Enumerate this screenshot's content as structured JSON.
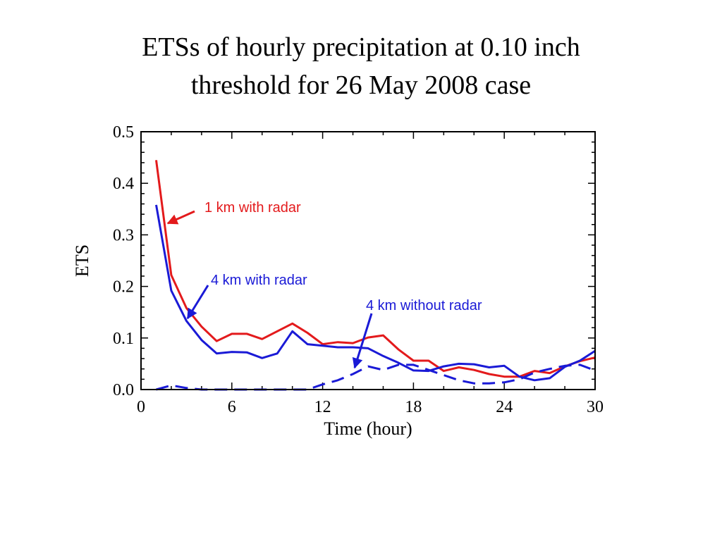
{
  "title_line1": "ETSs of hourly precipitation at 0.10 inch",
  "title_line2": "threshold for 26 May 2008 case",
  "chart_data": {
    "type": "line",
    "xlabel": "Time (hour)",
    "ylabel": "ETS",
    "xlim": [
      0,
      30
    ],
    "ylim": [
      0.0,
      0.5
    ],
    "xticks": [
      0,
      6,
      12,
      18,
      24,
      30
    ],
    "yticks": [
      "0.0",
      "0.1",
      "0.2",
      "0.3",
      "0.4",
      "0.5"
    ],
    "grid": false,
    "series": [
      {
        "name": "1 km with radar",
        "color": "#e31a1c",
        "style": "solid",
        "x": [
          1,
          2,
          3,
          4,
          5,
          6,
          7,
          8,
          9,
          10,
          11,
          12,
          13,
          14,
          15,
          16,
          17,
          18,
          19,
          20,
          21,
          22,
          23,
          24,
          25,
          26,
          27,
          28,
          29,
          30
        ],
        "values": [
          0.445,
          0.222,
          0.158,
          0.122,
          0.094,
          0.108,
          0.108,
          0.098,
          0.113,
          0.128,
          0.11,
          0.088,
          0.092,
          0.09,
          0.101,
          0.105,
          0.078,
          0.056,
          0.056,
          0.036,
          0.043,
          0.038,
          0.03,
          0.025,
          0.025,
          0.036,
          0.032,
          0.045,
          0.055,
          0.062
        ]
      },
      {
        "name": "4 km with radar",
        "color": "#1a1ad6",
        "style": "solid",
        "x": [
          1,
          2,
          3,
          4,
          5,
          6,
          7,
          8,
          9,
          10,
          11,
          12,
          13,
          14,
          15,
          16,
          17,
          18,
          19,
          20,
          21,
          22,
          23,
          24,
          25,
          26,
          27,
          28,
          29,
          30
        ],
        "values": [
          0.358,
          0.192,
          0.133,
          0.096,
          0.07,
          0.073,
          0.072,
          0.061,
          0.07,
          0.113,
          0.088,
          0.085,
          0.082,
          0.082,
          0.08,
          0.065,
          0.052,
          0.037,
          0.036,
          0.045,
          0.05,
          0.049,
          0.043,
          0.046,
          0.025,
          0.018,
          0.022,
          0.044,
          0.056,
          0.075
        ]
      },
      {
        "name": "4 km without radar",
        "color": "#1a1ad6",
        "style": "dashed",
        "x": [
          1,
          2,
          3,
          4,
          5,
          6,
          7,
          8,
          9,
          10,
          11,
          12,
          13,
          14,
          15,
          16,
          17,
          18,
          19,
          20,
          21,
          22,
          23,
          24,
          25,
          26,
          27,
          28,
          29,
          30
        ],
        "values": [
          0.0,
          0.008,
          0.003,
          0.0,
          0.0,
          0.0,
          0.0,
          0.0,
          0.0,
          0.0,
          0.0,
          0.01,
          0.018,
          0.03,
          0.045,
          0.038,
          0.048,
          0.048,
          0.038,
          0.028,
          0.018,
          0.012,
          0.012,
          0.014,
          0.02,
          0.033,
          0.04,
          0.046,
          0.048,
          0.037
        ]
      }
    ],
    "annotations": [
      {
        "text": "1 km with radar",
        "color": "#e31a1c"
      },
      {
        "text": "4 km with radar",
        "color": "#1a1ad6"
      },
      {
        "text": "4 km without radar",
        "color": "#1a1ad6"
      }
    ]
  }
}
